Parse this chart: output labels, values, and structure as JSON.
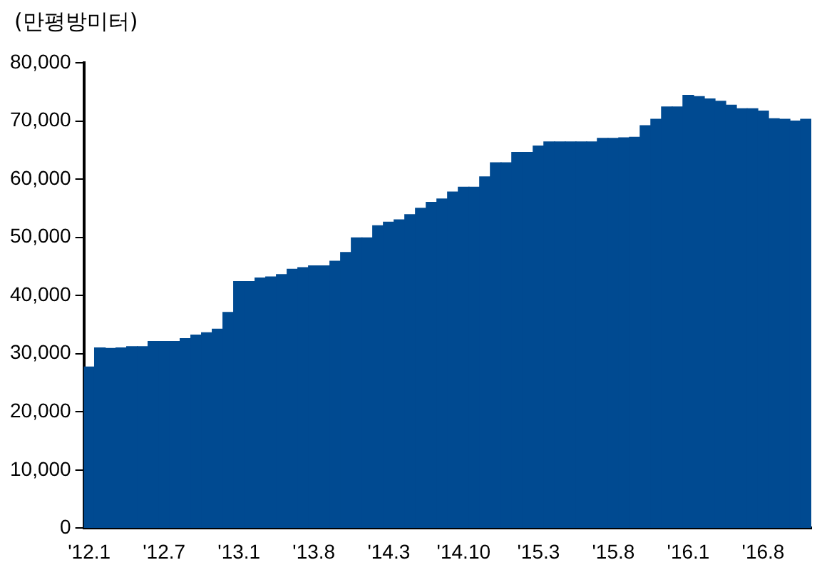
{
  "chart_data": {
    "type": "bar",
    "ylabel": "(만평방미터)",
    "categories": [
      "'12.1",
      null,
      null,
      null,
      null,
      null,
      null,
      "'12.7",
      null,
      null,
      null,
      null,
      null,
      null,
      "'13.1",
      null,
      null,
      null,
      null,
      null,
      null,
      "'13.8",
      null,
      null,
      null,
      null,
      null,
      null,
      "'14.3",
      null,
      null,
      null,
      null,
      null,
      null,
      "'14.10",
      null,
      null,
      null,
      null,
      null,
      null,
      "'15.3",
      null,
      null,
      null,
      null,
      null,
      null,
      "'15.8",
      null,
      null,
      null,
      null,
      null,
      null,
      "'16.1",
      null,
      null,
      null,
      null,
      null,
      null,
      "'16.8",
      null,
      null,
      null,
      null
    ],
    "values": [
      27700,
      31000,
      30900,
      31000,
      31200,
      31200,
      32100,
      32100,
      32100,
      32600,
      33200,
      33600,
      34200,
      37100,
      42400,
      42400,
      43000,
      43200,
      43600,
      44500,
      44800,
      45100,
      45100,
      45900,
      47400,
      49900,
      49900,
      52000,
      52600,
      53000,
      53900,
      55000,
      56000,
      56600,
      57800,
      58600,
      58600,
      60400,
      62800,
      62800,
      64600,
      64600,
      65700,
      66400,
      66400,
      66400,
      66400,
      66400,
      67000,
      67000,
      67100,
      67200,
      69200,
      70300,
      72400,
      72400,
      74400,
      74200,
      73800,
      73400,
      72700,
      72100,
      72100,
      71700,
      70400,
      70300,
      70000,
      70300
    ],
    "color": "#004a91",
    "ylim": [
      0,
      80000
    ],
    "yticks": [
      {
        "value": 0,
        "label": "0"
      },
      {
        "value": 10000,
        "label": "10,000"
      },
      {
        "value": 20000,
        "label": "20,000"
      },
      {
        "value": 30000,
        "label": "30,000"
      },
      {
        "value": 40000,
        "label": "40,000"
      },
      {
        "value": 50000,
        "label": "50,000"
      },
      {
        "value": 60000,
        "label": "60,000"
      },
      {
        "value": 70000,
        "label": "70,000"
      },
      {
        "value": 80000,
        "label": "80,000"
      }
    ],
    "grid": false,
    "legend": false
  }
}
